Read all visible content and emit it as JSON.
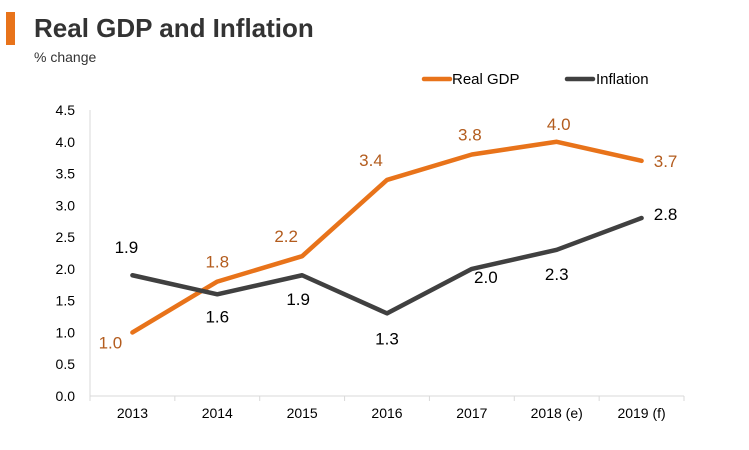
{
  "header": {
    "title": "Real GDP and Inflation",
    "subtitle": "% change"
  },
  "chart_data": {
    "type": "line",
    "title": "Real GDP and Inflation",
    "subtitle": "% change",
    "xlabel": "",
    "ylabel": "",
    "categories": [
      "2013",
      "2014",
      "2015",
      "2016",
      "2017",
      "2018 (e)",
      "2019 (f)"
    ],
    "ylim": [
      0,
      4.5
    ],
    "yticks": [
      "0.0",
      "0.5",
      "1.0",
      "1.5",
      "2.0",
      "2.5",
      "3.0",
      "3.5",
      "4.0",
      "4.5"
    ],
    "legend_position": "top-right",
    "grid": false,
    "series": [
      {
        "name": "Real GDP",
        "color": "#e8731a",
        "label_color": "#b35c1e",
        "values": [
          1.0,
          1.8,
          2.2,
          3.4,
          3.8,
          4.0,
          3.7
        ],
        "labels": [
          "1.0",
          "1.8",
          "2.2",
          "3.4",
          "3.8",
          "4.0",
          "3.7"
        ]
      },
      {
        "name": "Inflation",
        "color": "#404040",
        "label_color": "#000000",
        "values": [
          1.9,
          1.6,
          1.9,
          1.3,
          2.0,
          2.3,
          2.8
        ],
        "labels": [
          "1.9",
          "1.6",
          "1.9",
          "1.3",
          "2.0",
          "2.3",
          "2.8"
        ]
      }
    ]
  }
}
